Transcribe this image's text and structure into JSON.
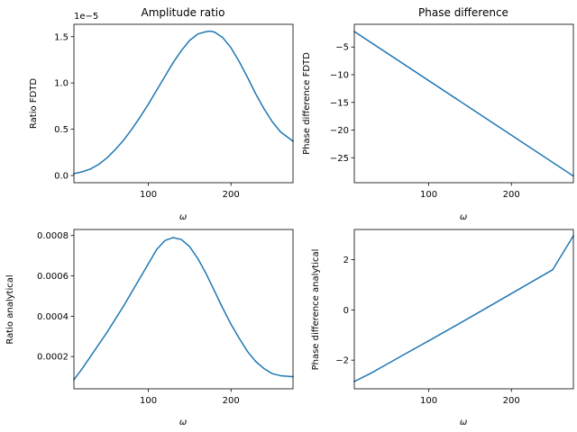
{
  "figure": {
    "background": "#ffffff",
    "line_color": "#1f77b4"
  },
  "chart_data": [
    {
      "id": "amplitude-fdtd",
      "type": "line",
      "title": "Amplitude ratio",
      "xlabel": "ω",
      "ylabel": "Ratio FDTD",
      "xlim": [
        10,
        275
      ],
      "ylim": [
        -0.078,
        1.634
      ],
      "xticks": [
        100,
        200
      ],
      "yticks": [
        0.0,
        0.5,
        1.0,
        1.5
      ],
      "ytick_labels": [
        "0.0",
        "0.5",
        "1.0",
        "1.5"
      ],
      "offset_text": "1e−5",
      "series": [
        {
          "name": "ratio_fdtd",
          "x": [
            10,
            20,
            30,
            40,
            50,
            60,
            70,
            80,
            90,
            100,
            110,
            120,
            130,
            140,
            150,
            160,
            170,
            175,
            180,
            190,
            200,
            210,
            220,
            230,
            240,
            250,
            260,
            275
          ],
          "y": [
            0.02,
            0.04,
            0.07,
            0.12,
            0.19,
            0.28,
            0.38,
            0.5,
            0.63,
            0.77,
            0.92,
            1.07,
            1.22,
            1.35,
            1.46,
            1.53,
            1.555,
            1.56,
            1.55,
            1.49,
            1.38,
            1.23,
            1.06,
            0.88,
            0.72,
            0.58,
            0.47,
            0.37
          ]
        }
      ]
    },
    {
      "id": "phase-fdtd",
      "type": "line",
      "title": "Phase difference",
      "xlabel": "ω",
      "ylabel": "Phase difference FDTD",
      "xlim": [
        10,
        275
      ],
      "ylim": [
        -29.5,
        -0.9
      ],
      "xticks": [
        100,
        200
      ],
      "yticks": [
        -5,
        -10,
        -15,
        -20,
        -25
      ],
      "ytick_labels": [
        "−5",
        "−10",
        "−15",
        "−20",
        "−25"
      ],
      "series": [
        {
          "name": "phase_fdtd",
          "x": [
            10,
            275
          ],
          "y": [
            -2.2,
            -28.3
          ]
        }
      ]
    },
    {
      "id": "amplitude-analytical",
      "type": "line",
      "title": "",
      "xlabel": "ω",
      "ylabel": "Ratio analytical",
      "xlim": [
        10,
        275
      ],
      "ylim": [
        4e-05,
        0.00083
      ],
      "xticks": [
        100,
        200
      ],
      "yticks": [
        0.0002,
        0.0004,
        0.0006,
        0.0008
      ],
      "ytick_labels": [
        "0.0002",
        "0.0004",
        "0.0006",
        "0.0008"
      ],
      "series": [
        {
          "name": "ratio_analytical",
          "x": [
            10,
            20,
            30,
            40,
            50,
            60,
            70,
            80,
            90,
            100,
            110,
            120,
            130,
            140,
            150,
            160,
            170,
            180,
            190,
            200,
            210,
            220,
            230,
            240,
            250,
            260,
            275
          ],
          "y": [
            8.5e-05,
            0.00014,
            0.0002,
            0.00026,
            0.00032,
            0.000385,
            0.00045,
            0.00052,
            0.00059,
            0.00066,
            0.00073,
            0.000775,
            0.00079,
            0.00078,
            0.000745,
            0.000685,
            0.00061,
            0.000525,
            0.00044,
            0.00036,
            0.00029,
            0.000225,
            0.000175,
            0.00014,
            0.000115,
            0.000105,
            0.0001
          ]
        }
      ]
    },
    {
      "id": "phase-analytical",
      "type": "line",
      "title": "",
      "xlabel": "ω",
      "ylabel": "Phase difference analytical",
      "xlim": [
        10,
        275
      ],
      "ylim": [
        -3.14,
        3.2
      ],
      "xticks": [
        100,
        200
      ],
      "yticks": [
        2,
        0,
        -2
      ],
      "ytick_labels": [
        "2",
        "0",
        "−2"
      ],
      "series": [
        {
          "name": "phase_analytical",
          "x": [
            10,
            30,
            50,
            70,
            100,
            150,
            200,
            250,
            275
          ],
          "y": [
            -2.85,
            -2.52,
            -2.15,
            -1.78,
            -1.23,
            -0.3,
            0.65,
            1.6,
            2.95
          ]
        }
      ]
    }
  ]
}
